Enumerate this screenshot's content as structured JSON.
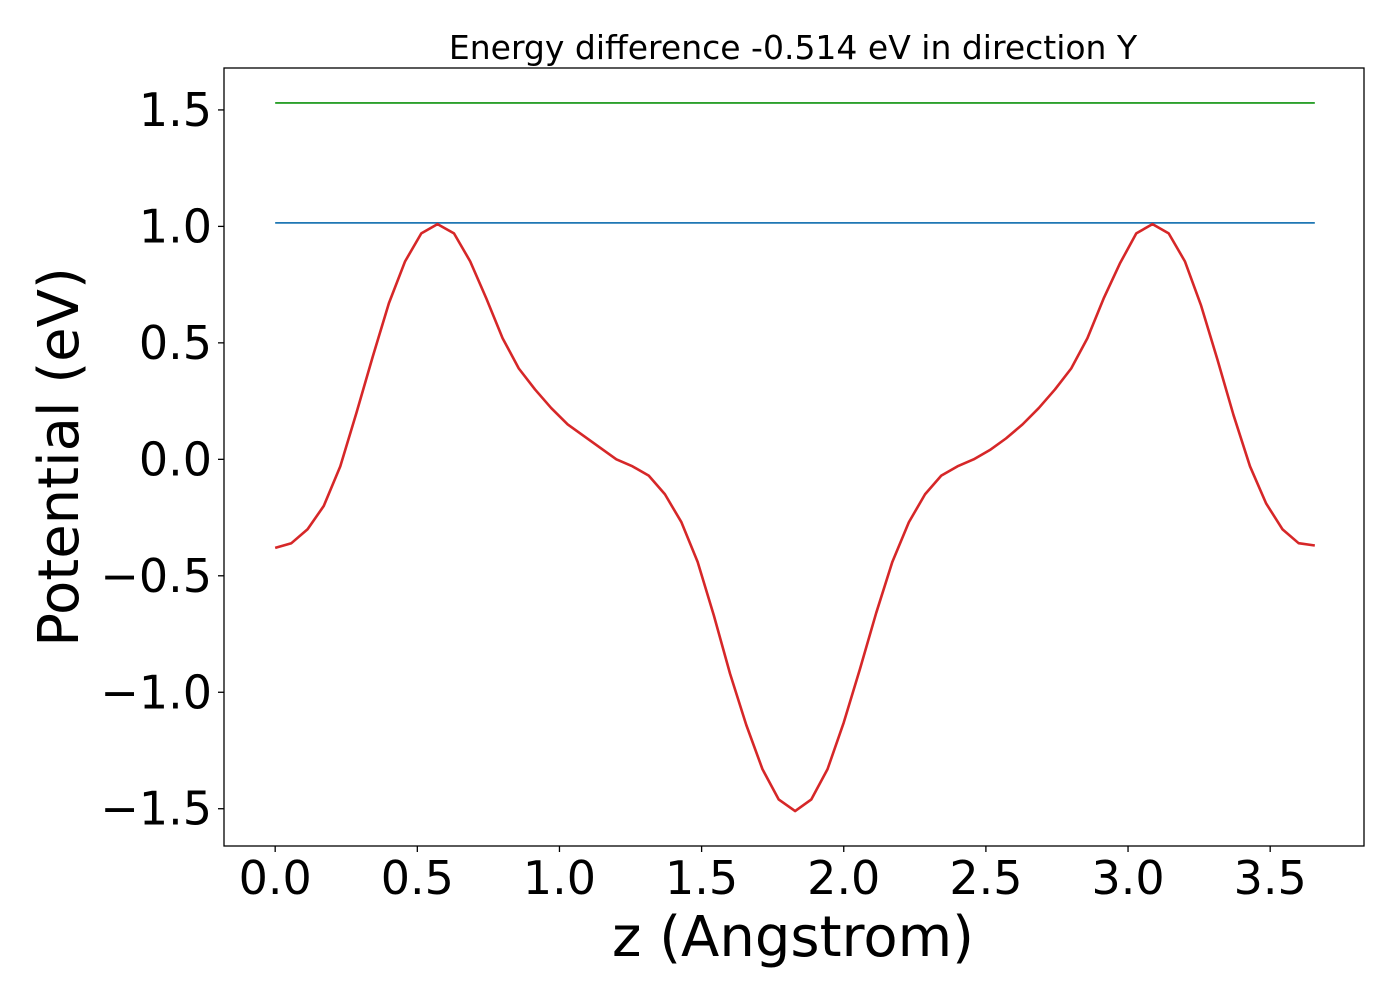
{
  "chart_data": {
    "type": "line",
    "title": "Energy difference -0.514 eV in direction Y",
    "xlabel": "z (Angstrom)",
    "ylabel": "Potential (eV)",
    "xlim": [
      -0.18,
      3.83
    ],
    "ylim": [
      -1.66,
      1.68
    ],
    "x_ticks": [
      0.0,
      0.5,
      1.0,
      1.5,
      2.0,
      2.5,
      3.0,
      3.5
    ],
    "x_tick_labels": [
      "0.0",
      "0.5",
      "1.0",
      "1.5",
      "2.0",
      "2.5",
      "3.0",
      "3.5"
    ],
    "y_ticks": [
      -1.5,
      -1.0,
      -0.5,
      0.0,
      0.5,
      1.0,
      1.5
    ],
    "y_tick_labels": [
      "−1.5",
      "−1.0",
      "−0.5",
      "0.0",
      "0.5",
      "1.0",
      "1.5"
    ],
    "grid": false,
    "series": [
      {
        "color": "#d62728",
        "x": [
          0.0,
          0.057,
          0.114,
          0.171,
          0.229,
          0.286,
          0.343,
          0.4,
          0.457,
          0.514,
          0.571,
          0.629,
          0.686,
          0.743,
          0.8,
          0.857,
          0.914,
          0.971,
          1.029,
          1.086,
          1.143,
          1.2,
          1.257,
          1.314,
          1.371,
          1.429,
          1.486,
          1.543,
          1.6,
          1.657,
          1.714,
          1.771,
          1.829,
          1.886,
          1.943,
          2.0,
          2.057,
          2.114,
          2.171,
          2.229,
          2.286,
          2.343,
          2.4,
          2.457,
          2.514,
          2.571,
          2.629,
          2.686,
          2.743,
          2.8,
          2.857,
          2.914,
          2.971,
          3.029,
          3.086,
          3.143,
          3.2,
          3.257,
          3.314,
          3.371,
          3.429,
          3.486,
          3.543,
          3.6,
          3.657
        ],
        "y": [
          -0.38,
          -0.36,
          -0.3,
          -0.2,
          -0.03,
          0.2,
          0.44,
          0.67,
          0.85,
          0.97,
          1.01,
          0.97,
          0.85,
          0.69,
          0.52,
          0.39,
          0.3,
          0.22,
          0.15,
          0.1,
          0.05,
          0.0,
          -0.03,
          -0.07,
          -0.15,
          -0.27,
          -0.44,
          -0.67,
          -0.92,
          -1.14,
          -1.33,
          -1.46,
          -1.51,
          -1.46,
          -1.33,
          -1.13,
          -0.9,
          -0.66,
          -0.44,
          -0.27,
          -0.15,
          -0.07,
          -0.03,
          0.0,
          0.04,
          0.09,
          0.15,
          0.22,
          0.3,
          0.39,
          0.52,
          0.69,
          0.84,
          0.97,
          1.01,
          0.97,
          0.85,
          0.66,
          0.43,
          0.19,
          -0.03,
          -0.19,
          -0.3,
          -0.36,
          -0.37
        ]
      },
      {
        "color": "#1f77b4",
        "x": [
          0.0,
          3.657
        ],
        "y": [
          1.015,
          1.015
        ]
      },
      {
        "color": "#2ca02c",
        "x": [
          0.0,
          3.657
        ],
        "y": [
          1.53,
          1.53
        ]
      }
    ]
  }
}
